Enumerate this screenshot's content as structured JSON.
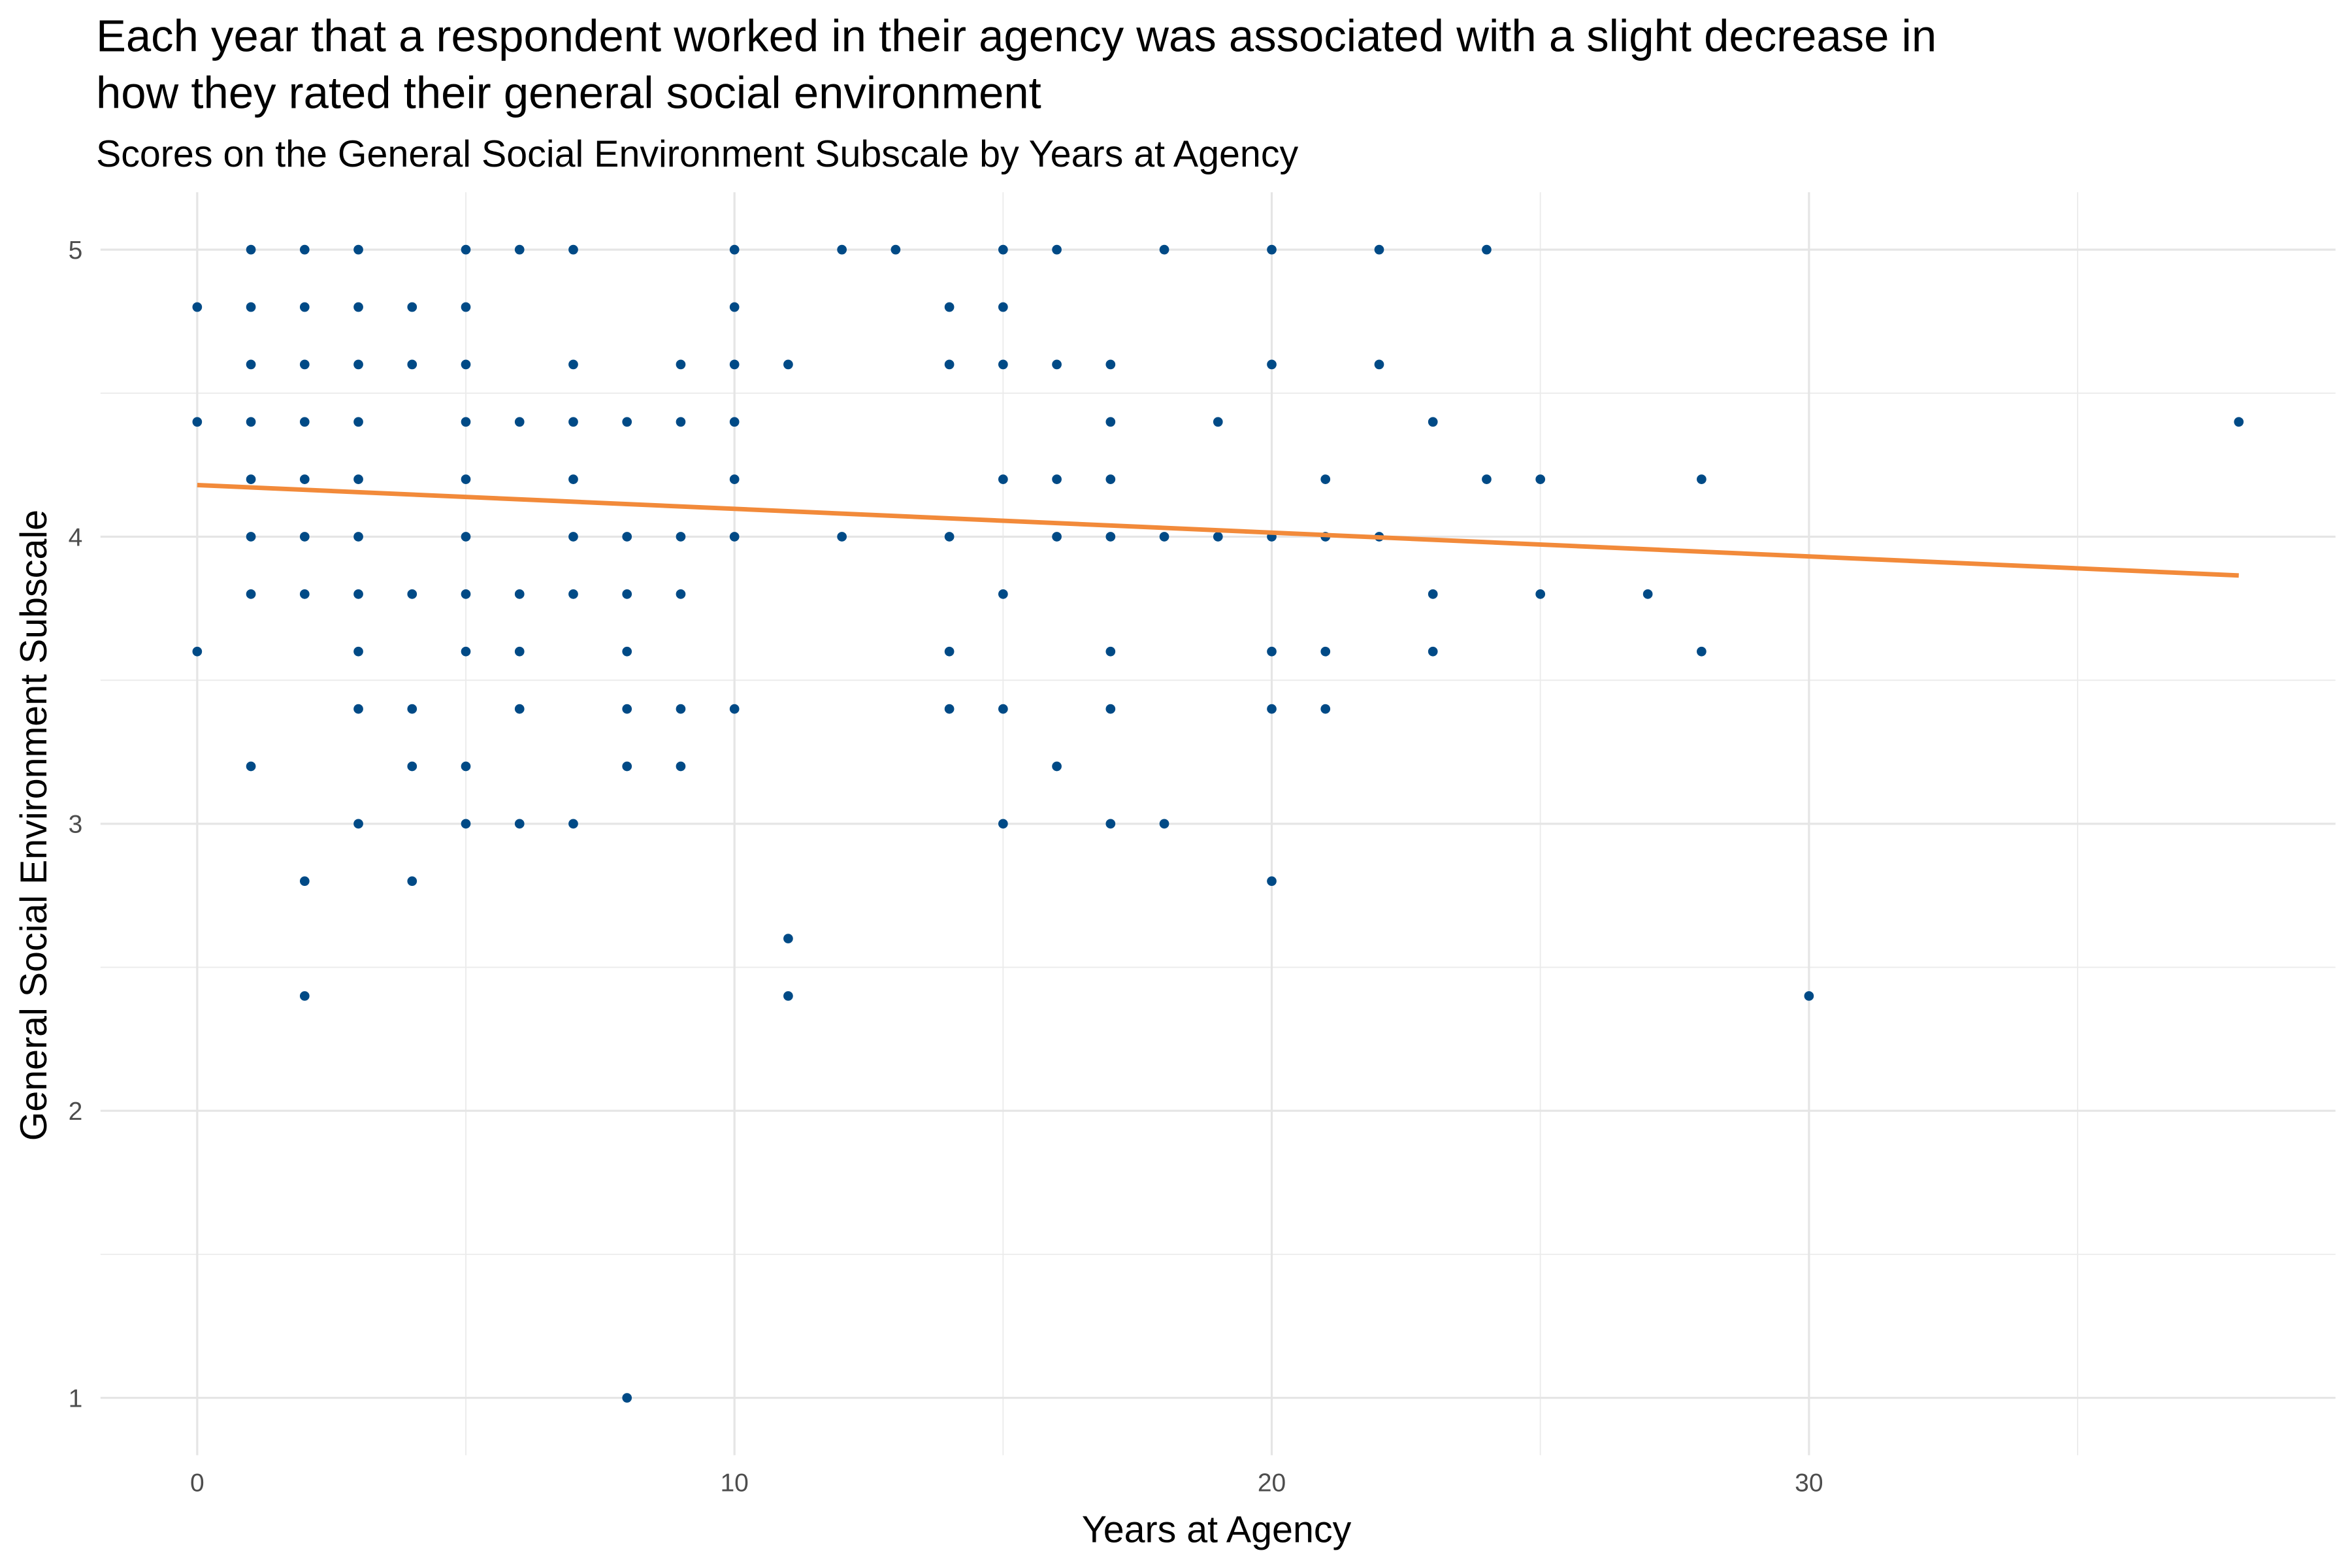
{
  "chart_data": {
    "type": "scatter",
    "title": "Each year that a respondent worked in their agency was associated with a slight decrease in how they rated their general social environment",
    "title_lines": [
      "Each year that a respondent worked in their agency was associated with a slight decrease in",
      "how they rated their general social environment"
    ],
    "subtitle": "Scores on the General Social Environment Subscale by Years at Agency",
    "xlabel": "Years at Agency",
    "ylabel": "General Social Environment Subscale",
    "xlim": [
      -1.8,
      39.8
    ],
    "ylim": [
      0.8,
      5.2
    ],
    "x_ticks": [
      0,
      10,
      20,
      30
    ],
    "y_ticks": [
      1,
      2,
      3,
      4,
      5
    ],
    "grid": true,
    "point_color": "#004A86",
    "trend_color": "#F28A3A",
    "trend_line": {
      "x": [
        0,
        38
      ],
      "y": [
        4.18,
        3.865
      ]
    },
    "points": [
      [
        0,
        [
          4.8,
          4.4,
          3.6
        ]
      ],
      [
        1,
        [
          5,
          4.8,
          4.6,
          4.4,
          4.2,
          4.0,
          3.8,
          3.2
        ]
      ],
      [
        2,
        [
          5,
          4.8,
          4.6,
          4.4,
          4.2,
          4.0,
          3.8,
          2.8,
          2.4
        ]
      ],
      [
        3,
        [
          5,
          4.8,
          4.6,
          4.4,
          4.2,
          4.0,
          3.8,
          3.6,
          3.4,
          3.0
        ]
      ],
      [
        4,
        [
          4.8,
          4.6,
          3.8,
          3.4,
          3.2,
          2.8
        ]
      ],
      [
        5,
        [
          5,
          4.8,
          4.6,
          4.4,
          4.2,
          4.0,
          3.8,
          3.6,
          3.2,
          3.0
        ]
      ],
      [
        6,
        [
          5,
          4.4,
          3.8,
          3.6,
          3.4,
          3.0
        ]
      ],
      [
        7,
        [
          5,
          4.6,
          4.4,
          4.2,
          4.0,
          3.8,
          3.0
        ]
      ],
      [
        8,
        [
          4.4,
          4.0,
          3.8,
          3.6,
          3.4,
          3.2,
          1.0
        ]
      ],
      [
        9,
        [
          4.6,
          4.4,
          4.0,
          3.8,
          3.4,
          3.2
        ]
      ],
      [
        10,
        [
          5,
          4.8,
          4.6,
          4.4,
          4.2,
          4.0,
          3.4
        ]
      ],
      [
        11,
        [
          4.6,
          2.6,
          2.4
        ]
      ],
      [
        12,
        [
          5,
          4.0
        ]
      ],
      [
        13,
        [
          5
        ]
      ],
      [
        14,
        [
          4.8,
          4.6,
          4.0,
          3.6,
          3.4
        ]
      ],
      [
        15,
        [
          5,
          4.8,
          4.6,
          4.2,
          3.8,
          3.4,
          3.0
        ]
      ],
      [
        16,
        [
          5,
          4.6,
          4.2,
          4.0,
          3.2
        ]
      ],
      [
        17,
        [
          4.6,
          4.4,
          4.2,
          4.0,
          3.6,
          3.4,
          3.0
        ]
      ],
      [
        18,
        [
          5,
          4.0,
          3.0
        ]
      ],
      [
        19,
        [
          4.4,
          4.0
        ]
      ],
      [
        20,
        [
          5,
          4.6,
          4.0,
          3.6,
          3.4,
          2.8
        ]
      ],
      [
        21,
        [
          4.2,
          4.0,
          3.6,
          3.4
        ]
      ],
      [
        22,
        [
          5,
          4.6,
          4.0
        ]
      ],
      [
        23,
        [
          4.4,
          3.8,
          3.6
        ]
      ],
      [
        24,
        [
          5,
          4.2
        ]
      ],
      [
        25,
        [
          4.2,
          3.8
        ]
      ],
      [
        27,
        [
          3.8
        ]
      ],
      [
        28,
        [
          4.2,
          3.6
        ]
      ],
      [
        30,
        [
          2.4
        ]
      ],
      [
        38,
        [
          4.4
        ]
      ]
    ]
  }
}
